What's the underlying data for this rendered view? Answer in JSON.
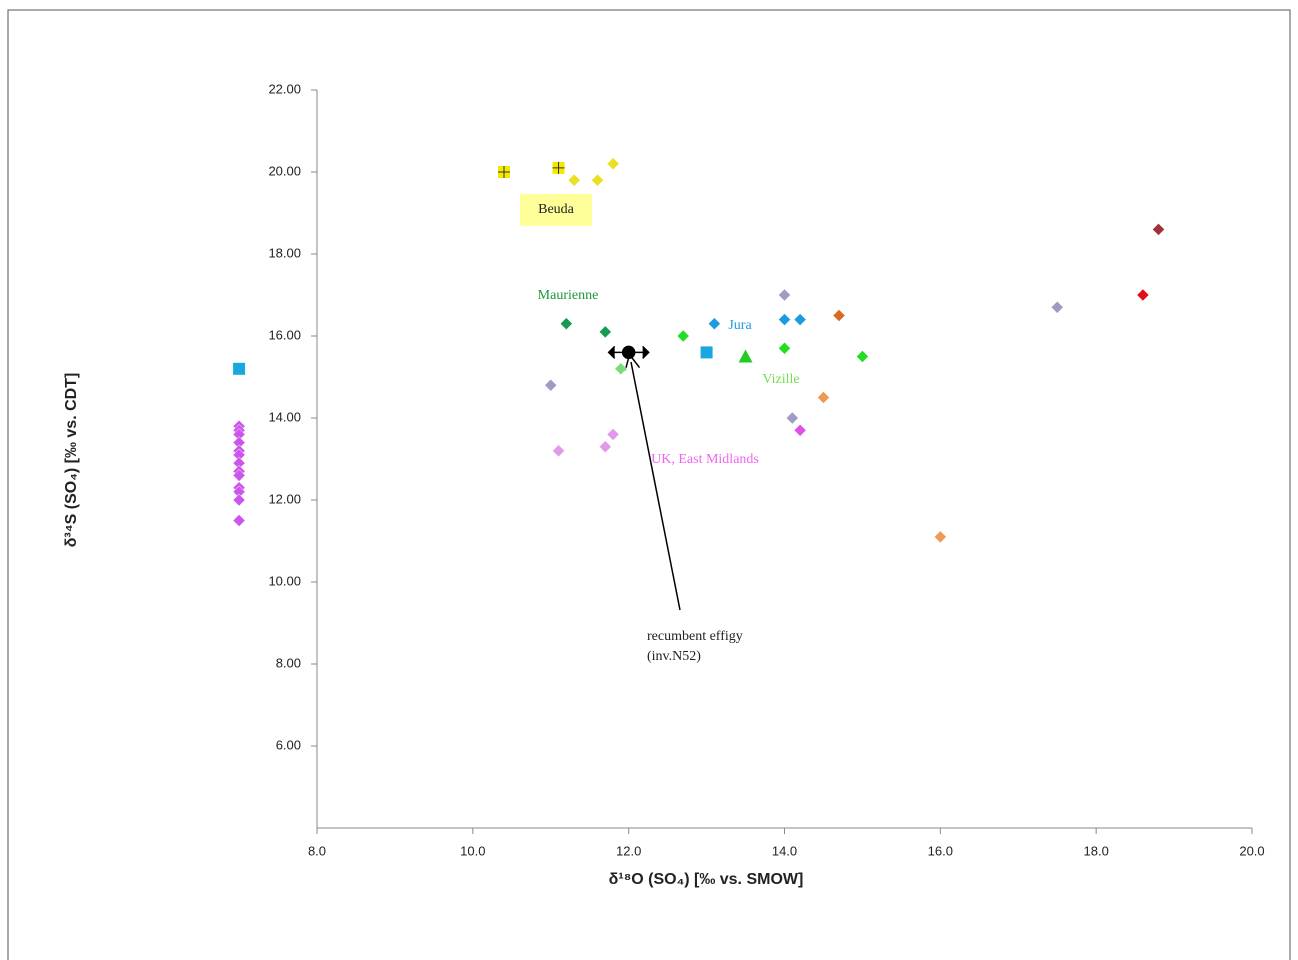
{
  "chart_data": {
    "type": "scatter",
    "xlabel": "δ¹⁸O (SO₄) [‰ vs. SMOW]",
    "ylabel": "δ³⁴S (SO₄) [‰ vs. CDT]",
    "xlim": [
      8,
      20
    ],
    "xticks": [
      {
        "value": 8,
        "label": "8.0"
      },
      {
        "value": 10,
        "label": "10.0"
      },
      {
        "value": 12,
        "label": "12.0"
      },
      {
        "value": 14,
        "label": "14.0"
      },
      {
        "value": 16,
        "label": "16.0"
      },
      {
        "value": 18,
        "label": "18.0"
      },
      {
        "value": 20,
        "label": "20.0"
      }
    ],
    "ylim": [
      4,
      22
    ],
    "yticks": [
      {
        "value": 6,
        "label": "6.00"
      },
      {
        "value": 8,
        "label": "8.00"
      },
      {
        "value": 10,
        "label": "10.00"
      },
      {
        "value": 12,
        "label": "12.00"
      },
      {
        "value": 14,
        "label": "14.00"
      },
      {
        "value": 16,
        "label": "16.00"
      },
      {
        "value": 18,
        "label": "18.00"
      },
      {
        "value": 20,
        "label": "20.00"
      },
      {
        "value": 22,
        "label": "22.00"
      }
    ],
    "series": [
      {
        "color": "#f5e800",
        "marker": "plus-square",
        "x": [
          10.4,
          11.1
        ],
        "values": [
          20.0,
          20.1
        ]
      },
      {
        "color": "#e8e020",
        "marker": "diamond",
        "x": [
          11.3,
          11.6,
          11.8
        ],
        "values": [
          19.8,
          19.8,
          20.2
        ]
      },
      {
        "color": "#cc55ee",
        "marker": "diamond",
        "x": [
          7.0,
          7.0,
          7.0,
          7.0,
          7.0,
          7.0,
          7.0,
          7.0,
          7.0,
          7.0,
          7.0,
          7.0,
          7.0
        ],
        "values": [
          13.8,
          13.7,
          13.6,
          13.4,
          13.2,
          13.1,
          12.9,
          12.7,
          12.6,
          12.3,
          12.2,
          12.0,
          11.5
        ]
      },
      {
        "color": "#1aa7e0",
        "marker": "square",
        "x": [
          7.0,
          13.0
        ],
        "values": [
          15.2,
          15.6
        ]
      },
      {
        "color": "#159a50",
        "marker": "diamond",
        "x": [
          11.2,
          11.7
        ],
        "values": [
          16.3,
          16.1
        ]
      },
      {
        "color": "#22dd22",
        "marker": "diamond",
        "x": [
          12.7,
          14.0,
          15.0
        ],
        "values": [
          16.0,
          15.7,
          15.5
        ]
      },
      {
        "color": "#22cc22",
        "marker": "triangle",
        "x": [
          13.5
        ],
        "values": [
          15.5
        ]
      },
      {
        "color": "#77dd77",
        "marker": "diamond",
        "x": [
          11.9
        ],
        "values": [
          15.2
        ]
      },
      {
        "color": "#000000",
        "marker": "effigy",
        "x": [
          12.0
        ],
        "values": [
          15.6
        ]
      },
      {
        "color": "#1e9be0",
        "marker": "diamond",
        "x": [
          13.1,
          14.0,
          14.2
        ],
        "values": [
          16.3,
          16.4,
          16.4
        ]
      },
      {
        "color": "#9c9cc4",
        "marker": "diamond",
        "x": [
          14.0,
          11.0,
          17.5,
          14.1
        ],
        "values": [
          17.0,
          14.8,
          16.7,
          14.0
        ]
      },
      {
        "color": "#d96a1e",
        "marker": "diamond",
        "x": [
          14.7
        ],
        "values": [
          16.5
        ]
      },
      {
        "color": "#ee9955",
        "marker": "diamond",
        "x": [
          14.5,
          16.0
        ],
        "values": [
          14.5,
          11.1
        ]
      },
      {
        "color": "#e0101a",
        "marker": "diamond",
        "x": [
          18.6
        ],
        "values": [
          17.0
        ]
      },
      {
        "color": "#a0303a",
        "marker": "diamond",
        "x": [
          18.8
        ],
        "values": [
          18.6
        ]
      },
      {
        "color": "#e09ae8",
        "marker": "diamond",
        "x": [
          11.1,
          11.7,
          11.8
        ],
        "values": [
          13.2,
          13.3,
          13.6
        ]
      },
      {
        "color": "#e050e8",
        "marker": "diamond",
        "x": [
          14.2
        ],
        "values": [
          13.7
        ]
      }
    ],
    "annotations": [
      "Beuda",
      "Maurienne",
      "Jura",
      "Vizille",
      "UK, East Midlands",
      "recumbent effigy",
      "(inv.N52)"
    ]
  }
}
